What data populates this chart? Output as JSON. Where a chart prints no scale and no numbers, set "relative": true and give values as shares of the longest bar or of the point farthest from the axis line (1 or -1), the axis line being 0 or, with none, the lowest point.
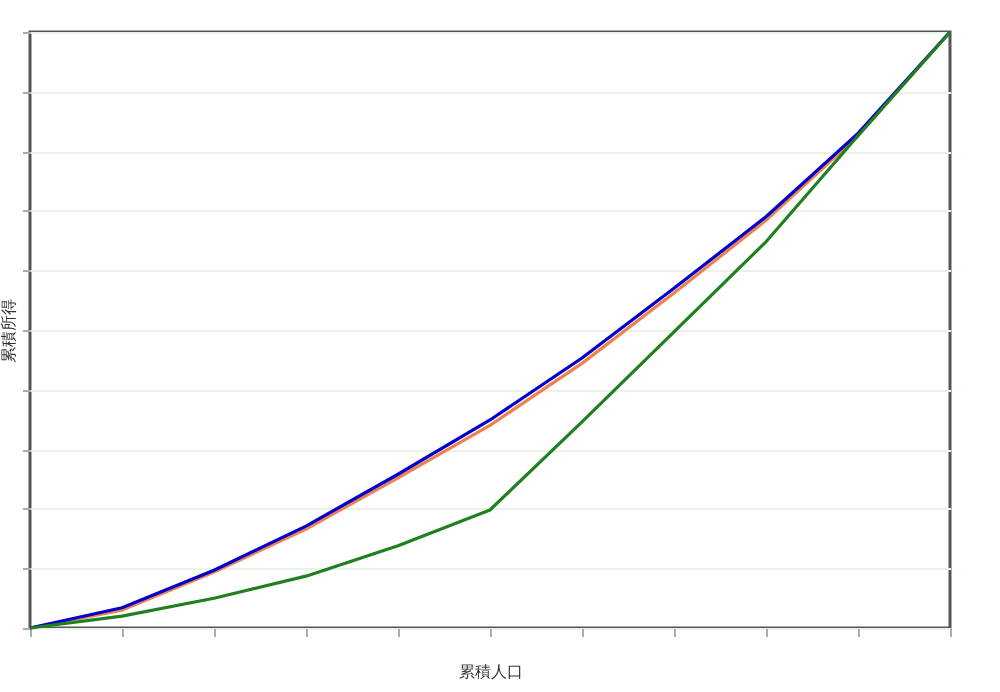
{
  "chart_data": {
    "type": "line",
    "xlabel": "累積人口",
    "ylabel": "累積所得",
    "relative": true,
    "grid": "y",
    "categories": [
      null,
      null,
      null,
      null,
      null,
      null,
      null,
      null,
      null,
      null,
      null
    ],
    "series": [
      {
        "color": "#f08050",
        "values": [
          0,
          0.03,
          0.094,
          0.166,
          0.252,
          0.34,
          0.444,
          0.562,
          0.684,
          0.826,
          1
        ]
      },
      {
        "color": "#0000cc",
        "values": [
          0,
          0.034,
          0.097,
          0.171,
          0.258,
          0.349,
          0.453,
          0.57,
          0.69,
          0.83,
          1
        ]
      },
      {
        "color": "#208020",
        "values": [
          0,
          0.02,
          0.05,
          0.087,
          0.138,
          0.198,
          0.346,
          0.497,
          0.648,
          0.826,
          1
        ]
      }
    ]
  }
}
